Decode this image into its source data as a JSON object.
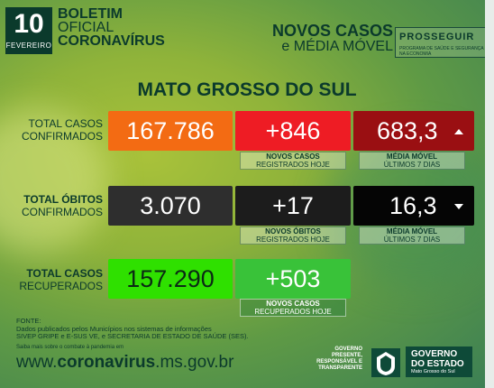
{
  "header": {
    "day": "10",
    "month": "FEVEREIRO",
    "title_line1": "BOLETIM",
    "title_line2": "OFICIAL",
    "title_line3": "CORONAVÍRUS",
    "right_line1": "NOVOS CASOS",
    "right_line2": "e MÉDIA MÓVEL",
    "logo_name": "PROSSEGUIR",
    "logo_tagline": "PROGRAMA DE SAÚDE E SEGURANÇA NA ECONOMIA"
  },
  "state_title": "MATO GROSSO DO SUL",
  "rows": {
    "cases": {
      "label_line1": "TOTAL CASOS",
      "label_line2": "CONFIRMADOS",
      "total": "167.786",
      "new": "+846",
      "new_caption_line1": "NOVOS CASOS",
      "new_caption_line2": "REGISTRADOS HOJE",
      "average": "683,3",
      "average_caption_line1": "MÉDIA MÓVEL",
      "average_caption_line2": "ÚLTIMOS 7 DIAS",
      "trend": "up",
      "colors": {
        "total": "#f36b13",
        "new": "#ee1c24",
        "average": "#9a0f12"
      }
    },
    "deaths": {
      "label_line1": "TOTAL ÓBITOS",
      "label_line2": "CONFIRMADOS",
      "total": "3.070",
      "new": "+17",
      "new_caption_line1": "NOVOS ÓBITOS",
      "new_caption_line2": "REGISTRADOS HOJE",
      "average": "16,3",
      "average_caption_line1": "MÉDIA MÓVEL",
      "average_caption_line2": "ÚLTIMOS 7 DIAS",
      "trend": "down",
      "colors": {
        "total": "#2e2e2e",
        "new": "#1c1c1c",
        "average": "#050505"
      }
    },
    "recovered": {
      "label_line1": "TOTAL CASOS",
      "label_line2": "RECUPERADOS",
      "total": "157.290",
      "new": "+503",
      "new_caption_line1": "NOVOS CASOS",
      "new_caption_line2": "RECUPERADOS HOJE",
      "colors": {
        "total": "#2fe000",
        "new": "#39c239"
      }
    }
  },
  "sources": {
    "label": "FONTE:",
    "line1": "Dados publicados pelos Municípios nos sistemas de informações",
    "line2": "SIVEP GRIPE e E-SUS VE, e SECRETARIA DE ESTADO DE SAÚDE (SES)."
  },
  "footer": {
    "more_info": "Saiba mais sobre o combate à pandemia em",
    "url_prefix": "www.",
    "url_bold": "coronavirus",
    "url_suffix": ".ms.gov.br",
    "slogan_line1": "GOVERNO",
    "slogan_line2": "PRESENTE,",
    "slogan_line3": "RESPONSÁVEL E",
    "slogan_line4": "TRANSPARENTE",
    "gov_line1": "GOVERNO",
    "gov_line2": "DO ESTADO",
    "gov_sub": "Mato Grosso do Sul"
  }
}
